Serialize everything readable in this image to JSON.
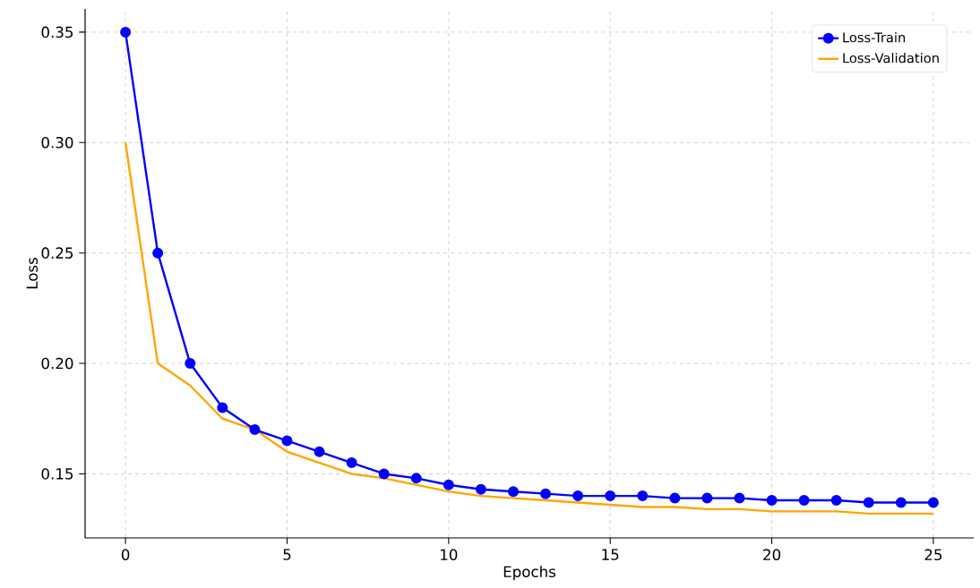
{
  "chart_data": {
    "type": "line",
    "xlabel": "Epochs",
    "ylabel": "Loss",
    "x": [
      0,
      1,
      2,
      3,
      4,
      5,
      6,
      7,
      8,
      9,
      10,
      11,
      12,
      13,
      14,
      15,
      16,
      17,
      18,
      19,
      20,
      21,
      22,
      23,
      24,
      25
    ],
    "series": [
      {
        "name": "Loss-Train",
        "color": "#0000ff",
        "marker": "circle",
        "values": [
          0.35,
          0.25,
          0.2,
          0.18,
          0.17,
          0.165,
          0.16,
          0.155,
          0.15,
          0.148,
          0.145,
          0.143,
          0.142,
          0.141,
          0.14,
          0.14,
          0.14,
          0.139,
          0.139,
          0.139,
          0.138,
          0.138,
          0.138,
          0.137,
          0.137,
          0.137
        ]
      },
      {
        "name": "Loss-Validation",
        "color": "#ffa500",
        "marker": "none",
        "values": [
          0.3,
          0.2,
          0.19,
          0.175,
          0.17,
          0.16,
          0.155,
          0.15,
          0.148,
          0.145,
          0.142,
          0.14,
          0.139,
          0.138,
          0.137,
          0.136,
          0.135,
          0.135,
          0.134,
          0.134,
          0.133,
          0.133,
          0.133,
          0.132,
          0.132,
          0.132
        ]
      }
    ],
    "xlim": [
      -1.25,
      26.25
    ],
    "ylim": [
      0.121,
      0.3605
    ],
    "xticks": [
      0,
      5,
      10,
      15,
      20,
      25
    ],
    "yticks": [
      {
        "value": 0.15,
        "label": "0.15"
      },
      {
        "value": 0.2,
        "label": "0.20"
      },
      {
        "value": 0.25,
        "label": "0.25"
      },
      {
        "value": 0.3,
        "label": "0.30"
      },
      {
        "value": 0.35,
        "label": "0.35"
      }
    ],
    "grid": true,
    "legend": "top right",
    "line_style": "solid"
  }
}
